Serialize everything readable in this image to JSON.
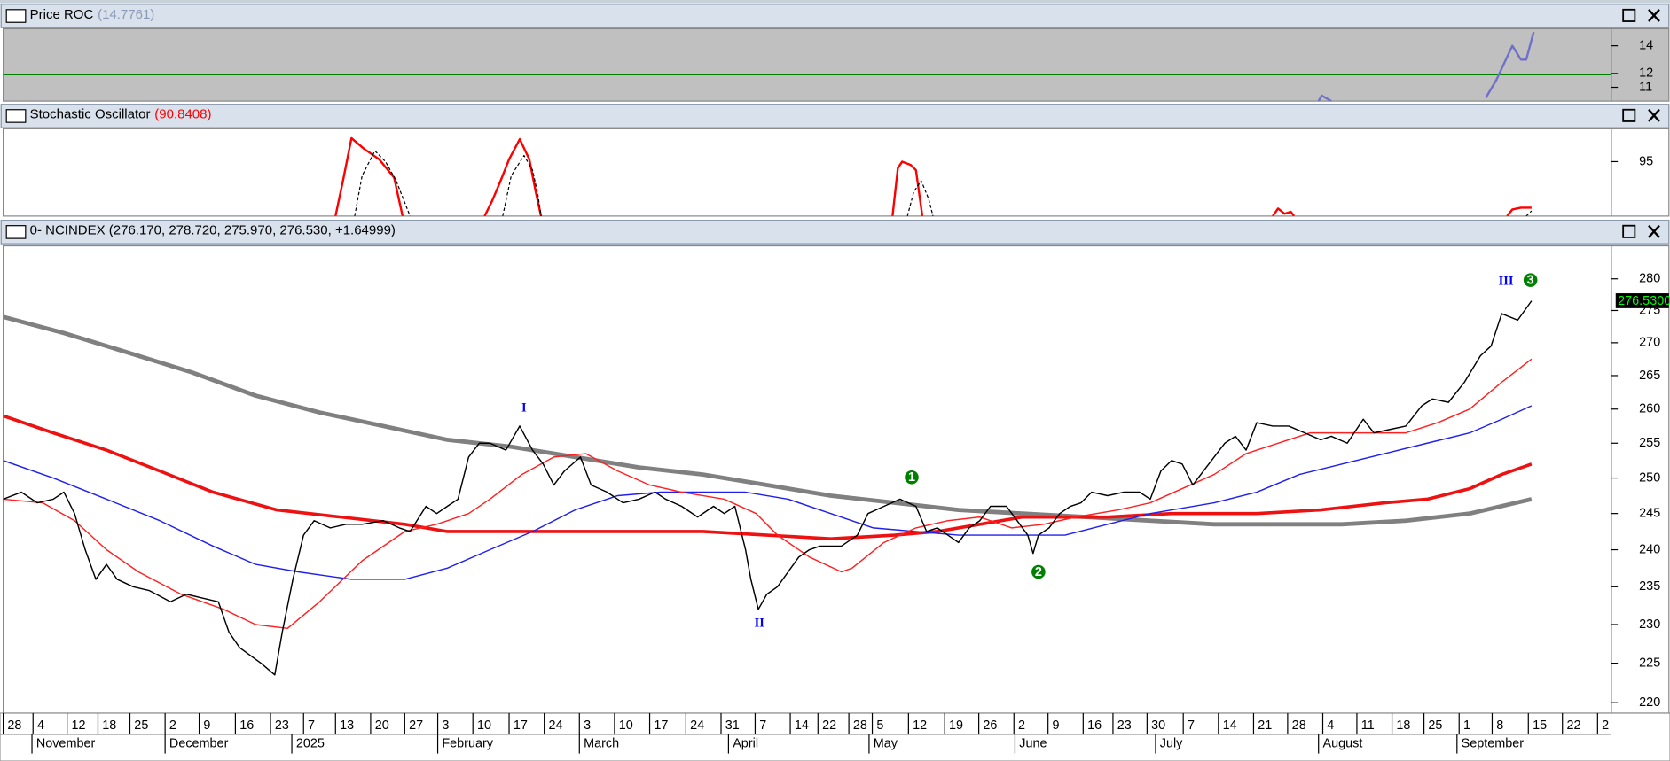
{
  "time_axis": {
    "xlim": [
      3,
      1513
    ],
    "day_ticks": [
      {
        "value": 3,
        "label": "28"
      },
      {
        "value": 31,
        "label": "4"
      },
      {
        "value": 63,
        "label": "12"
      },
      {
        "value": 92,
        "label": "18"
      },
      {
        "value": 122,
        "label": "25"
      },
      {
        "value": 155,
        "label": "2"
      },
      {
        "value": 187,
        "label": "9"
      },
      {
        "value": 221,
        "label": "16"
      },
      {
        "value": 254,
        "label": "23"
      },
      {
        "value": 285,
        "label": "7"
      },
      {
        "value": 315,
        "label": "13"
      },
      {
        "value": 348,
        "label": "20"
      },
      {
        "value": 380,
        "label": "27"
      },
      {
        "value": 411,
        "label": "3"
      },
      {
        "value": 444,
        "label": "10"
      },
      {
        "value": 478,
        "label": "17"
      },
      {
        "value": 511,
        "label": "24"
      },
      {
        "value": 544,
        "label": "3"
      },
      {
        "value": 577,
        "label": "10"
      },
      {
        "value": 610,
        "label": "17"
      },
      {
        "value": 644,
        "label": "24"
      },
      {
        "value": 677,
        "label": "31"
      },
      {
        "value": 709,
        "label": "7"
      },
      {
        "value": 742,
        "label": "14"
      },
      {
        "value": 768,
        "label": "22"
      },
      {
        "value": 797,
        "label": "28"
      },
      {
        "value": 819,
        "label": "5"
      },
      {
        "value": 853,
        "label": "12"
      },
      {
        "value": 887,
        "label": "19"
      },
      {
        "value": 919,
        "label": "26"
      },
      {
        "value": 952,
        "label": "2"
      },
      {
        "value": 984,
        "label": "9"
      },
      {
        "value": 1017,
        "label": "16"
      },
      {
        "value": 1045,
        "label": "23"
      },
      {
        "value": 1077,
        "label": "30"
      },
      {
        "value": 1111,
        "label": "7"
      },
      {
        "value": 1144,
        "label": "14"
      },
      {
        "value": 1177,
        "label": "21"
      },
      {
        "value": 1209,
        "label": "28"
      },
      {
        "value": 1242,
        "label": "4"
      },
      {
        "value": 1274,
        "label": "11"
      },
      {
        "value": 1307,
        "label": "18"
      },
      {
        "value": 1337,
        "label": "25"
      },
      {
        "value": 1370,
        "label": "1"
      },
      {
        "value": 1401,
        "label": "8"
      },
      {
        "value": 1435,
        "label": "15"
      },
      {
        "value": 1467,
        "label": "22"
      },
      {
        "value": 1500,
        "label": "2"
      }
    ],
    "months": [
      {
        "value": 30,
        "label": "November"
      },
      {
        "value": 155,
        "label": "December"
      },
      {
        "value": 274,
        "label": "2025"
      },
      {
        "value": 411,
        "label": "February"
      },
      {
        "value": 544,
        "label": "March"
      },
      {
        "value": 684,
        "label": "April"
      },
      {
        "value": 816,
        "label": "May"
      },
      {
        "value": 953,
        "label": "June"
      },
      {
        "value": 1085,
        "label": "July"
      },
      {
        "value": 1238,
        "label": "August"
      },
      {
        "value": 1368,
        "label": "September"
      }
    ]
  },
  "panes": [
    {
      "title": "Price ROC",
      "value_label": "(14.7761)",
      "ylim": [
        10,
        15.23
      ],
      "yticks": [
        14,
        12,
        11
      ],
      "reference_line": 11.9,
      "series": [
        {
          "color": "#7070c8",
          "width": 2,
          "x": [
            1238,
            1241,
            1250,
            null,
            1395,
            1405,
            1420,
            1428,
            1433,
            1440
          ],
          "values": [
            10,
            10.4,
            10,
            null,
            10.23,
            11.54,
            14,
            13,
            13,
            15
          ]
        }
      ]
    },
    {
      "title": "Stochastic Oscillator",
      "value_label": "(90.8408)",
      "ylim": [
        83.4,
        102
      ],
      "yticks": [
        95
      ],
      "series": [
        {
          "color": "#ff0000",
          "width": 2,
          "x": [
            315,
            322,
            330,
            342,
            356,
            370,
            378,
            null,
            455,
            462,
            470,
            478,
            488,
            497,
            503,
            508,
            null,
            838,
            843,
            847,
            855,
            860,
            866,
            null,
            1195,
            1200,
            1206,
            1212,
            1215,
            null,
            1415,
            1420,
            1428,
            1438
          ],
          "values": [
            83.4,
            90.9,
            100,
            97.7,
            95.5,
            91.6,
            83.4,
            null,
            83.4,
            86.6,
            90.9,
            95.5,
            99.8,
            95.5,
            88.6,
            83.4,
            null,
            83.4,
            93.6,
            95,
            94.3,
            93.2,
            83.4,
            null,
            83.4,
            85,
            83.9,
            84.3,
            83.4,
            null,
            83.4,
            84.8,
            85.2,
            85.2
          ]
        },
        {
          "color": "#000000",
          "width": 1,
          "dash": true,
          "x": [
            333,
            340,
            352,
            362,
            372,
            385,
            null,
            472,
            480,
            492,
            500,
            505,
            508,
            null,
            852,
            858,
            865,
            872,
            876,
            null,
            1433,
            1438
          ],
          "values": [
            83.4,
            92,
            97.3,
            95,
            90.9,
            83.4,
            null,
            83.4,
            92,
            96.3,
            93.2,
            88,
            83.4,
            null,
            83.4,
            88.6,
            90.9,
            87,
            83.4,
            null,
            83.4,
            84.5
          ]
        }
      ]
    },
    {
      "title": "0- NCINDEX (276.170, 278.720, 275.970, 276.530, +1.64999)",
      "log_scale": true,
      "ylim": [
        218.7,
        285.3
      ],
      "yticks": [
        220,
        225,
        230,
        235,
        240,
        245,
        250,
        255,
        260,
        265,
        270,
        275,
        280
      ],
      "last_price": {
        "value": 276.53,
        "label": "276.5300"
      },
      "annotations": [
        {
          "label": "I",
          "x": 492,
          "value": 260.1,
          "color": "#0000ff"
        },
        {
          "label": "II",
          "x": 713,
          "value": 230.1,
          "color": "#0000ff"
        },
        {
          "label": "III",
          "x": 1414,
          "value": 279.5,
          "color": "#0000ff"
        },
        {
          "label": "1",
          "x": 856,
          "value": 250.1,
          "color": "#008000",
          "circle": true
        },
        {
          "label": "2",
          "x": 975,
          "value": 237,
          "color": "#008000",
          "circle": true
        },
        {
          "label": "3",
          "x": 1437,
          "value": 279.8,
          "color": "#008000",
          "circle": true
        }
      ],
      "series": [
        {
          "color": "#808080",
          "width": 4,
          "x": [
            3,
            60,
            120,
            180,
            240,
            300,
            360,
            420,
            480,
            540,
            600,
            660,
            720,
            780,
            840,
            900,
            960,
            1020,
            1080,
            1140,
            1200,
            1260,
            1320,
            1380,
            1438
          ],
          "values": [
            274,
            271.5,
            268.5,
            265.5,
            262,
            259.5,
            257.5,
            255.5,
            254.5,
            253,
            251.5,
            250.5,
            249,
            247.5,
            246.5,
            245.5,
            245,
            244.5,
            244,
            243.5,
            243.5,
            243.5,
            244,
            245,
            247
          ]
        },
        {
          "color": "#ee1111",
          "width": 3,
          "x": [
            3,
            50,
            100,
            150,
            200,
            260,
            320,
            380,
            420,
            480,
            560,
            660,
            720,
            780,
            840,
            880,
            920,
            960,
            1000,
            1040,
            1100,
            1180,
            1240,
            1300,
            1340,
            1380,
            1410,
            1438
          ],
          "values": [
            259,
            256.5,
            254,
            251,
            248,
            245.5,
            244.5,
            243.5,
            242.5,
            242.5,
            242.5,
            242.5,
            242,
            241.5,
            242,
            242.5,
            243.5,
            244.5,
            244.5,
            244.5,
            245,
            245,
            245.5,
            246.5,
            247,
            248.5,
            250.5,
            252
          ]
        },
        {
          "color": "#2020ee",
          "width": 1.2,
          "x": [
            3,
            50,
            100,
            150,
            200,
            240,
            280,
            330,
            380,
            420,
            460,
            500,
            540,
            580,
            620,
            660,
            700,
            740,
            780,
            820,
            860,
            900,
            940,
            980,
            1000,
            1040,
            1080,
            1140,
            1180,
            1220,
            1260,
            1300,
            1340,
            1380,
            1410,
            1438
          ],
          "values": [
            252.5,
            250,
            247,
            244,
            240.5,
            238,
            237,
            236,
            236,
            237.5,
            240,
            242.5,
            245.5,
            247.5,
            248,
            248,
            248,
            247,
            245,
            243,
            242.5,
            242,
            242,
            242,
            242,
            243.5,
            245,
            246.5,
            248,
            250.5,
            252,
            253.5,
            255,
            256.5,
            258.5,
            260.5
          ]
        },
        {
          "color": "#ff2020",
          "width": 1.2,
          "x": [
            3,
            40,
            70,
            100,
            130,
            170,
            210,
            240,
            270,
            300,
            340,
            380,
            410,
            440,
            460,
            490,
            520,
            550,
            580,
            610,
            640,
            680,
            710,
            730,
            760,
            790,
            800,
            830,
            860,
            890,
            920,
            950,
            980,
            1010,
            1050,
            1080,
            1110,
            1140,
            1170,
            1200,
            1230,
            1260,
            1290,
            1320,
            1350,
            1380,
            1410,
            1438
          ],
          "values": [
            247,
            246.5,
            244,
            240,
            237,
            234,
            232,
            230,
            229.5,
            233,
            238.5,
            242.5,
            243.5,
            245,
            247,
            250.5,
            253,
            253.5,
            251,
            249,
            248,
            247,
            245,
            242,
            239,
            237,
            237.5,
            241,
            243,
            244,
            244.5,
            243,
            243.5,
            244.5,
            245.5,
            246.5,
            248.5,
            250.5,
            253.5,
            255,
            256.5,
            256.5,
            256.5,
            256.5,
            258,
            260,
            264,
            267.5
          ]
        },
        {
          "color": "#000000",
          "width": 1.2,
          "x": [
            3,
            20,
            35,
            50,
            60,
            70,
            80,
            90,
            100,
            110,
            125,
            140,
            160,
            175,
            190,
            205,
            215,
            225,
            235,
            245,
            258,
            265,
            275,
            285,
            295,
            310,
            325,
            340,
            360,
            375,
            385,
            400,
            410,
            420,
            430,
            440,
            450,
            460,
            475,
            488,
            500,
            510,
            520,
            530,
            545,
            555,
            570,
            585,
            600,
            615,
            625,
            640,
            655,
            670,
            680,
            690,
            700,
            705,
            712,
            720,
            730,
            740,
            750,
            760,
            770,
            790,
            805,
            815,
            830,
            845,
            860,
            870,
            880,
            890,
            900,
            910,
            920,
            930,
            945,
            955,
            965,
            970,
            975,
            985,
            995,
            1005,
            1015,
            1025,
            1040,
            1055,
            1070,
            1080,
            1090,
            1100,
            1110,
            1120,
            1130,
            1140,
            1150,
            1160,
            1170,
            1180,
            1195,
            1210,
            1225,
            1240,
            1250,
            1265,
            1280,
            1290,
            1305,
            1320,
            1335,
            1345,
            1360,
            1375,
            1390,
            1400,
            1410,
            1425,
            1438
          ],
          "values": [
            247,
            248,
            246.5,
            247,
            248,
            245,
            240,
            236,
            238,
            236,
            235,
            234.5,
            233,
            234,
            233.5,
            233,
            229,
            227,
            226,
            225,
            223.5,
            229,
            236,
            242,
            244,
            243,
            243.5,
            243.5,
            244,
            243,
            242.5,
            246,
            245,
            246,
            247,
            253,
            255,
            255,
            254,
            257.5,
            254,
            252,
            249,
            251,
            253,
            249,
            248,
            246.5,
            247,
            248,
            247,
            246,
            244.5,
            246,
            245,
            246,
            240,
            236,
            232,
            234,
            235,
            237,
            239,
            240,
            240.5,
            240.5,
            242,
            245,
            246,
            247,
            246,
            242.5,
            243,
            242,
            241,
            243,
            244,
            246,
            246,
            244,
            242,
            239.5,
            242,
            243,
            245,
            246,
            246.5,
            248,
            247.5,
            248,
            248,
            247,
            251,
            252.5,
            252,
            249,
            251,
            253,
            255,
            256,
            254,
            258,
            257.5,
            257.5,
            256.5,
            255.5,
            256,
            255,
            258.5,
            256.5,
            257,
            257.5,
            260.5,
            261.5,
            261,
            264,
            268,
            269.5,
            274.5,
            273.5,
            276.5
          ]
        }
      ]
    }
  ]
}
